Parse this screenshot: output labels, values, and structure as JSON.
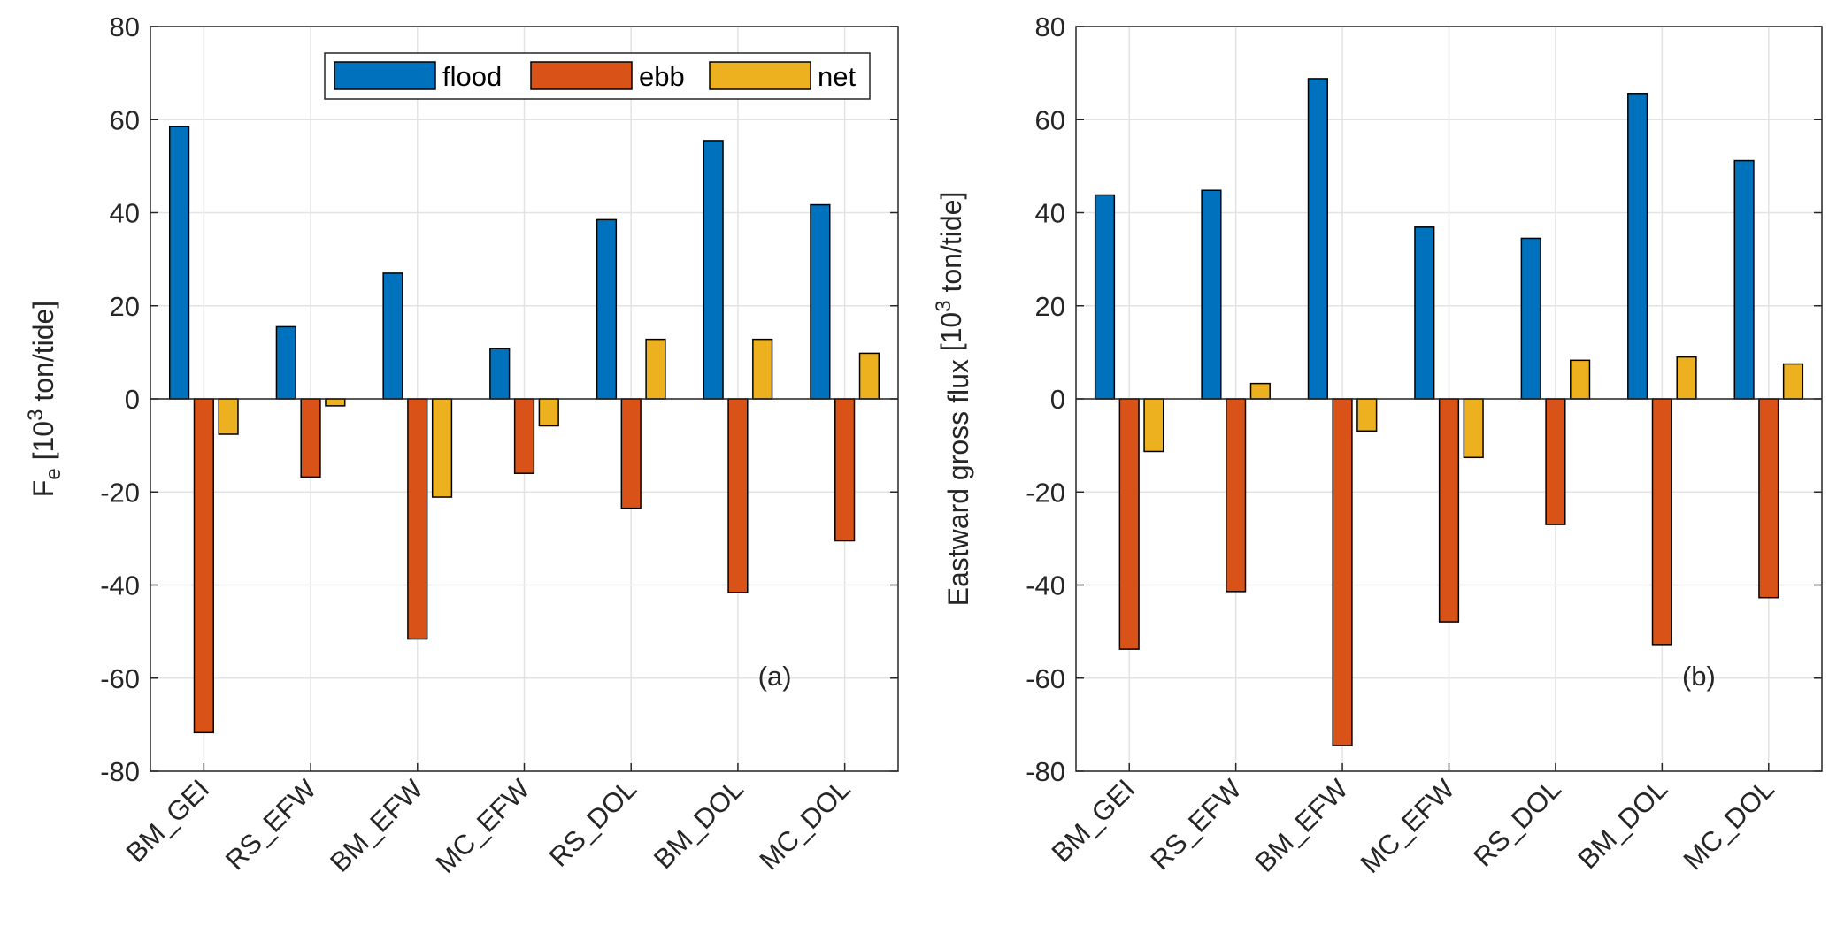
{
  "chart_data": [
    {
      "type": "bar",
      "panel_label": "(a)",
      "ylabel_main": "F",
      "ylabel_sub": "e",
      "ylabel_rest": " [10",
      "ylabel_sup": "3",
      "ylabel_end": " ton/tide]",
      "categories": [
        "BM_GEI",
        "RS_EFW",
        "BM_EFW",
        "MC_EFW",
        "RS_DOL",
        "BM_DOL",
        "MC_DOL"
      ],
      "series": [
        {
          "name": "flood",
          "color": "#0072BD",
          "values": [
            58.5,
            15.5,
            27.0,
            10.8,
            38.5,
            55.5,
            41.7
          ]
        },
        {
          "name": "ebb",
          "color": "#D95319",
          "values": [
            -71.7,
            -16.8,
            -51.6,
            -16.0,
            -23.5,
            -41.6,
            -30.5
          ]
        },
        {
          "name": "net",
          "color": "#EDB120",
          "values": [
            -7.6,
            -1.5,
            -21.1,
            -5.8,
            12.8,
            12.8,
            9.8
          ]
        }
      ],
      "ylim": [
        -80,
        80
      ],
      "yticks": [
        -80,
        -60,
        -40,
        -20,
        0,
        20,
        40,
        60,
        80
      ],
      "grid": true,
      "legend": "top-right horizontal"
    },
    {
      "type": "bar",
      "panel_label": "(b)",
      "ylabel_main": "Eastward gross flux",
      "ylabel_sub": "",
      "ylabel_rest": " [10",
      "ylabel_sup": "3",
      "ylabel_end": " ton/tide]",
      "categories": [
        "BM_GEI",
        "RS_EFW",
        "BM_EFW",
        "MC_EFW",
        "RS_DOL",
        "BM_DOL",
        "MC_DOL"
      ],
      "series": [
        {
          "name": "flood",
          "color": "#0072BD",
          "values": [
            43.8,
            44.8,
            68.8,
            36.9,
            34.5,
            65.6,
            51.2
          ]
        },
        {
          "name": "ebb",
          "color": "#D95319",
          "values": [
            -53.8,
            -41.4,
            -74.5,
            -47.9,
            -27.0,
            -52.8,
            -42.7
          ]
        },
        {
          "name": "net",
          "color": "#EDB120",
          "values": [
            -11.3,
            3.3,
            -6.9,
            -12.6,
            8.3,
            9.0,
            7.5
          ]
        }
      ],
      "ylim": [
        -80,
        80
      ],
      "yticks": [
        -80,
        -60,
        -40,
        -20,
        0,
        20,
        40,
        60,
        80
      ],
      "grid": true,
      "legend": "none"
    }
  ]
}
